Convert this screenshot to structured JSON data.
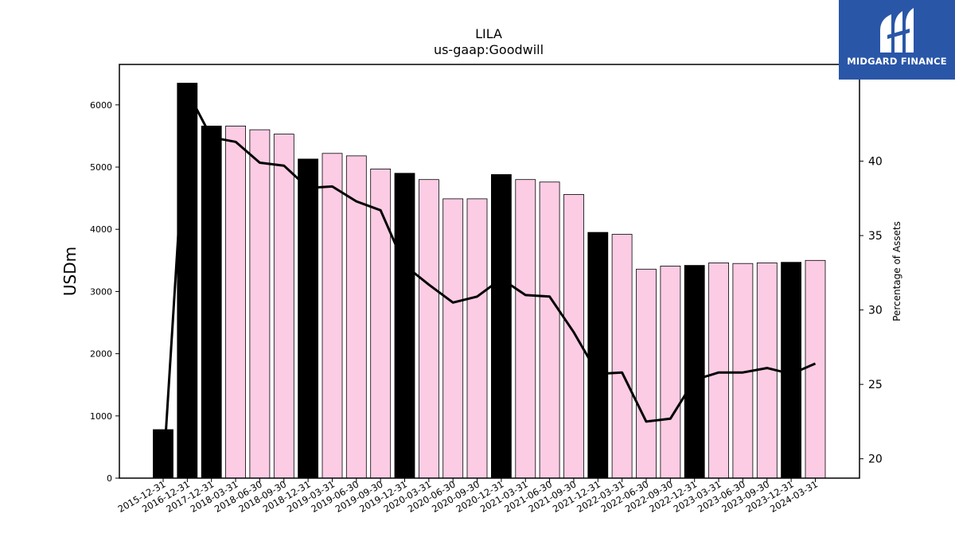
{
  "logo": {
    "text": "MIDGARD FINANCE"
  },
  "chart_data": {
    "type": "bar",
    "title": "LILA",
    "subtitle": "us-gaap:Goodwill",
    "ylabel": "USDm",
    "y2label": "Percentage of Assets",
    "ylim": [
      0,
      6650
    ],
    "y2lim": [
      18.7,
      46.5
    ],
    "yticks": [
      0,
      1000,
      2000,
      3000,
      4000,
      5000,
      6000
    ],
    "y2ticks": [
      20,
      25,
      30,
      35,
      40
    ],
    "categories": [
      "2015-12-31",
      "2016-12-31",
      "2017-12-31",
      "2018-03-31",
      "2018-06-30",
      "2018-09-30",
      "2018-12-31",
      "2019-03-31",
      "2019-06-30",
      "2019-09-30",
      "2019-12-31",
      "2020-03-31",
      "2020-06-30",
      "2020-09-30",
      "2020-12-31",
      "2021-03-31",
      "2021-06-30",
      "2021-09-30",
      "2021-12-31",
      "2022-03-31",
      "2022-06-30",
      "2022-09-30",
      "2022-12-31",
      "2023-03-31",
      "2023-06-30",
      "2023-09-30",
      "2023-12-31",
      "2024-03-31"
    ],
    "series": [
      {
        "kind": "bar",
        "values": [
          780,
          6350,
          5660,
          5660,
          5600,
          5530,
          5130,
          5220,
          5180,
          4970,
          4900,
          4800,
          4490,
          4490,
          4880,
          4800,
          4760,
          4560,
          3950,
          3920,
          3360,
          3410,
          3420,
          3460,
          3450,
          3460,
          3470,
          3500
        ],
        "annual": [
          true,
          true,
          true,
          false,
          false,
          false,
          true,
          false,
          false,
          false,
          true,
          false,
          false,
          false,
          true,
          false,
          false,
          false,
          true,
          false,
          false,
          false,
          true,
          false,
          false,
          false,
          true,
          false
        ],
        "colors": {
          "annual": "#000000",
          "quarterly": "#fccce4"
        }
      },
      {
        "kind": "line",
        "axis": "right",
        "color": "#000000",
        "values": [
          18.9,
          44.7,
          41.6,
          41.3,
          39.9,
          39.7,
          38.2,
          38.3,
          37.3,
          36.7,
          33.0,
          31.7,
          30.5,
          30.9,
          32.1,
          31.0,
          30.9,
          28.5,
          25.7,
          25.8,
          22.5,
          22.7,
          25.3,
          25.8,
          25.8,
          26.1,
          25.7,
          26.4
        ]
      }
    ]
  }
}
